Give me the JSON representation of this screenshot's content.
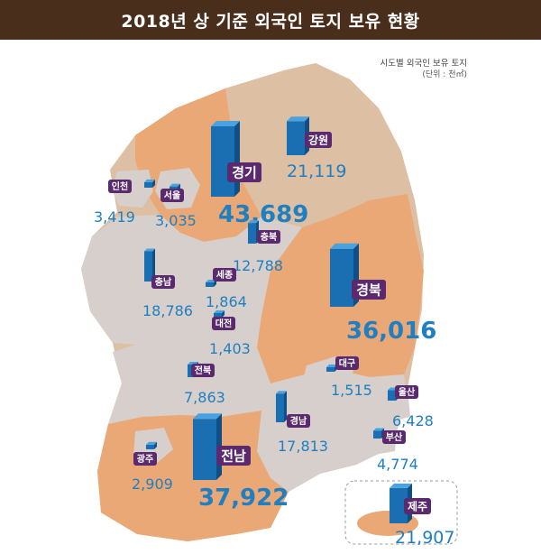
{
  "title": "2018년 상 기준 외국인 토지 보유 현황",
  "legend": {
    "line1": "시도별 외국인 보유 토지",
    "line2": "(단위 : 천㎡)"
  },
  "colors": {
    "header_bg": "#4a2e1c",
    "province_orange": "#eaa876",
    "province_tan": "#ddbfa4",
    "province_gray": "#d7cfcb",
    "label_purple": "#5b2a6e",
    "value_blue": "#1f7fc1",
    "bar_blue": "#1a6fb3"
  },
  "regions": [
    {
      "key": "gyeonggi",
      "name": "경기",
      "value": "43,689",
      "amount": 43689,
      "size": "big"
    },
    {
      "key": "gangwon",
      "name": "강원",
      "value": "21,119",
      "amount": 21119,
      "size": "mid"
    },
    {
      "key": "incheon",
      "name": "인천",
      "value": "3,419",
      "amount": 3419,
      "size": "small"
    },
    {
      "key": "seoul",
      "name": "서울",
      "value": "3,035",
      "amount": 3035,
      "size": "small"
    },
    {
      "key": "chungbuk",
      "name": "충북",
      "value": "12,788",
      "amount": 12788,
      "size": "small"
    },
    {
      "key": "chungnam",
      "name": "충남",
      "value": "18,786",
      "amount": 18786,
      "size": "small"
    },
    {
      "key": "sejong",
      "name": "세종",
      "value": "1,864",
      "amount": 1864,
      "size": "small"
    },
    {
      "key": "daejeon",
      "name": "대전",
      "value": "1,403",
      "amount": 1403,
      "size": "small"
    },
    {
      "key": "gyeongbuk",
      "name": "경북",
      "value": "36,016",
      "amount": 36016,
      "size": "big"
    },
    {
      "key": "daegu",
      "name": "대구",
      "value": "1,515",
      "amount": 1515,
      "size": "small"
    },
    {
      "key": "jeonbuk",
      "name": "전북",
      "value": "7,863",
      "amount": 7863,
      "size": "small"
    },
    {
      "key": "ulsan",
      "name": "울산",
      "value": "6,428",
      "amount": 6428,
      "size": "small"
    },
    {
      "key": "gyeongnam",
      "name": "경남",
      "value": "17,813",
      "amount": 17813,
      "size": "small"
    },
    {
      "key": "busan",
      "name": "부산",
      "value": "4,774",
      "amount": 4774,
      "size": "small"
    },
    {
      "key": "gwangju",
      "name": "광주",
      "value": "2,909",
      "amount": 2909,
      "size": "small"
    },
    {
      "key": "jeonnam",
      "name": "전남",
      "value": "37,922",
      "amount": 37922,
      "size": "big"
    },
    {
      "key": "jeju",
      "name": "제주",
      "value": "21,907",
      "amount": 21907,
      "size": "mid"
    }
  ]
}
